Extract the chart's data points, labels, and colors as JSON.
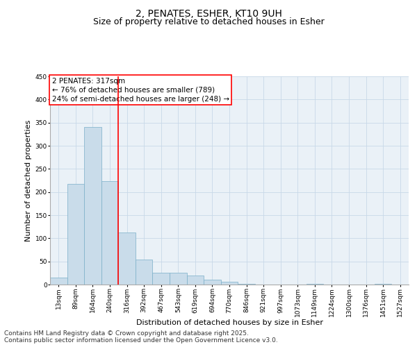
{
  "title_line1": "2, PENATES, ESHER, KT10 9UH",
  "title_line2": "Size of property relative to detached houses in Esher",
  "xlabel": "Distribution of detached houses by size in Esher",
  "ylabel": "Number of detached properties",
  "categories": [
    "13sqm",
    "89sqm",
    "164sqm",
    "240sqm",
    "316sqm",
    "392sqm",
    "467sqm",
    "543sqm",
    "619sqm",
    "694sqm",
    "770sqm",
    "846sqm",
    "921sqm",
    "997sqm",
    "1073sqm",
    "1149sqm",
    "1224sqm",
    "1300sqm",
    "1376sqm",
    "1451sqm",
    "1527sqm"
  ],
  "values": [
    15,
    217,
    340,
    224,
    113,
    54,
    26,
    26,
    19,
    10,
    6,
    2,
    0,
    0,
    0,
    1,
    0,
    0,
    0,
    1,
    0
  ],
  "bar_color": "#c9dcea",
  "bar_edge_color": "#7aafc8",
  "vline_x_index": 4,
  "vline_color": "red",
  "annotation_text": "2 PENATES: 317sqm\n← 76% of detached houses are smaller (789)\n24% of semi-detached houses are larger (248) →",
  "annotation_box_color": "white",
  "annotation_box_edge_color": "red",
  "ylim": [
    0,
    450
  ],
  "yticks": [
    0,
    50,
    100,
    150,
    200,
    250,
    300,
    350,
    400,
    450
  ],
  "grid_color": "#c8d8e8",
  "background_color": "#eaf1f7",
  "footer_line1": "Contains HM Land Registry data © Crown copyright and database right 2025.",
  "footer_line2": "Contains public sector information licensed under the Open Government Licence v3.0.",
  "title_fontsize": 10,
  "subtitle_fontsize": 9,
  "axis_label_fontsize": 8,
  "tick_fontsize": 6.5,
  "annotation_fontsize": 7.5,
  "footer_fontsize": 6.5
}
